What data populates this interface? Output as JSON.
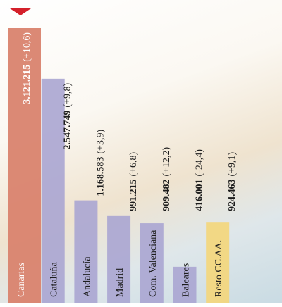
{
  "chart_data": {
    "type": "bar",
    "categories": [
      "Canarias",
      "Cataluña",
      "Andalucía",
      "Madrid",
      "Com. Valenciana",
      "Baleares",
      "Resto CC.AA."
    ],
    "values": [
      3121215,
      2547749,
      1168583,
      991215,
      909482,
      416001,
      924463
    ],
    "value_labels": [
      "3.121.215",
      "2.547.749",
      "1.168.583",
      "991.215",
      "909.482",
      "416.001",
      "924.463"
    ],
    "change_labels": [
      "(+10,6)",
      "(+9,8)",
      "(+3,9)",
      "(+6,8)",
      "(+12,2)",
      "(-24,4)",
      "(+9,1)"
    ],
    "colors": [
      "#d9836e",
      "#aaa5d1",
      "#aaa5d1",
      "#aaa5d1",
      "#aaa5d1",
      "#aaa5d1",
      "#f4d67a"
    ]
  }
}
